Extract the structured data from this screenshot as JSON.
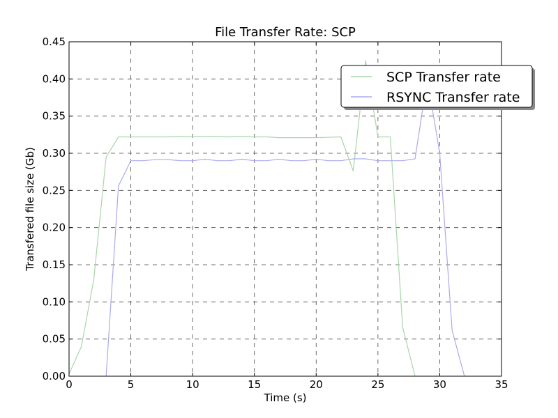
{
  "chart_data": {
    "type": "line",
    "title": "File Transfer Rate: SCP",
    "xlabel": "Time (s)",
    "ylabel": "Transfered file size (Gb)",
    "xlim": [
      0,
      35
    ],
    "ylim": [
      0,
      0.45
    ],
    "xticks": [
      0,
      5,
      10,
      15,
      20,
      25,
      30,
      35
    ],
    "yticks": [
      0.0,
      0.05,
      0.1,
      0.15,
      0.2,
      0.25,
      0.3,
      0.35,
      0.4,
      0.45
    ],
    "xtick_labels": [
      "0",
      "5",
      "10",
      "15",
      "20",
      "25",
      "30",
      "35"
    ],
    "ytick_labels": [
      "0.00",
      "0.05",
      "0.10",
      "0.15",
      "0.20",
      "0.25",
      "0.30",
      "0.35",
      "0.40",
      "0.45"
    ],
    "grid": true,
    "legend_position": "top-right",
    "series": [
      {
        "name": "SCP Transfer rate",
        "color": "#a8d5a8",
        "x": [
          0,
          1,
          2,
          3,
          4,
          5,
          6,
          7,
          8,
          9,
          10,
          11,
          12,
          13,
          14,
          15,
          16,
          17,
          18,
          19,
          20,
          21,
          22,
          23,
          24,
          25,
          26,
          27,
          28
        ],
        "y": [
          0.003,
          0.04,
          0.13,
          0.295,
          0.322,
          0.322,
          0.322,
          0.322,
          0.322,
          0.3225,
          0.322,
          0.3225,
          0.3225,
          0.322,
          0.3225,
          0.322,
          0.322,
          0.321,
          0.321,
          0.321,
          0.321,
          0.3215,
          0.322,
          0.276,
          0.425,
          0.322,
          0.322,
          0.066,
          0.0
        ]
      },
      {
        "name": "RSYNC Transfer rate",
        "color": "#aaaaee",
        "x": [
          3,
          4,
          5,
          6,
          7,
          8,
          9,
          10,
          11,
          12,
          13,
          14,
          15,
          16,
          17,
          18,
          19,
          20,
          21,
          22,
          23,
          24,
          25,
          26,
          27,
          28,
          29,
          30,
          31,
          32
        ],
        "y": [
          0.0,
          0.256,
          0.29,
          0.29,
          0.2915,
          0.2915,
          0.29,
          0.29,
          0.292,
          0.29,
          0.29,
          0.292,
          0.29,
          0.29,
          0.292,
          0.29,
          0.29,
          0.292,
          0.29,
          0.29,
          0.2925,
          0.2925,
          0.29,
          0.29,
          0.29,
          0.2925,
          0.4,
          0.3,
          0.062,
          0.0
        ]
      }
    ]
  }
}
